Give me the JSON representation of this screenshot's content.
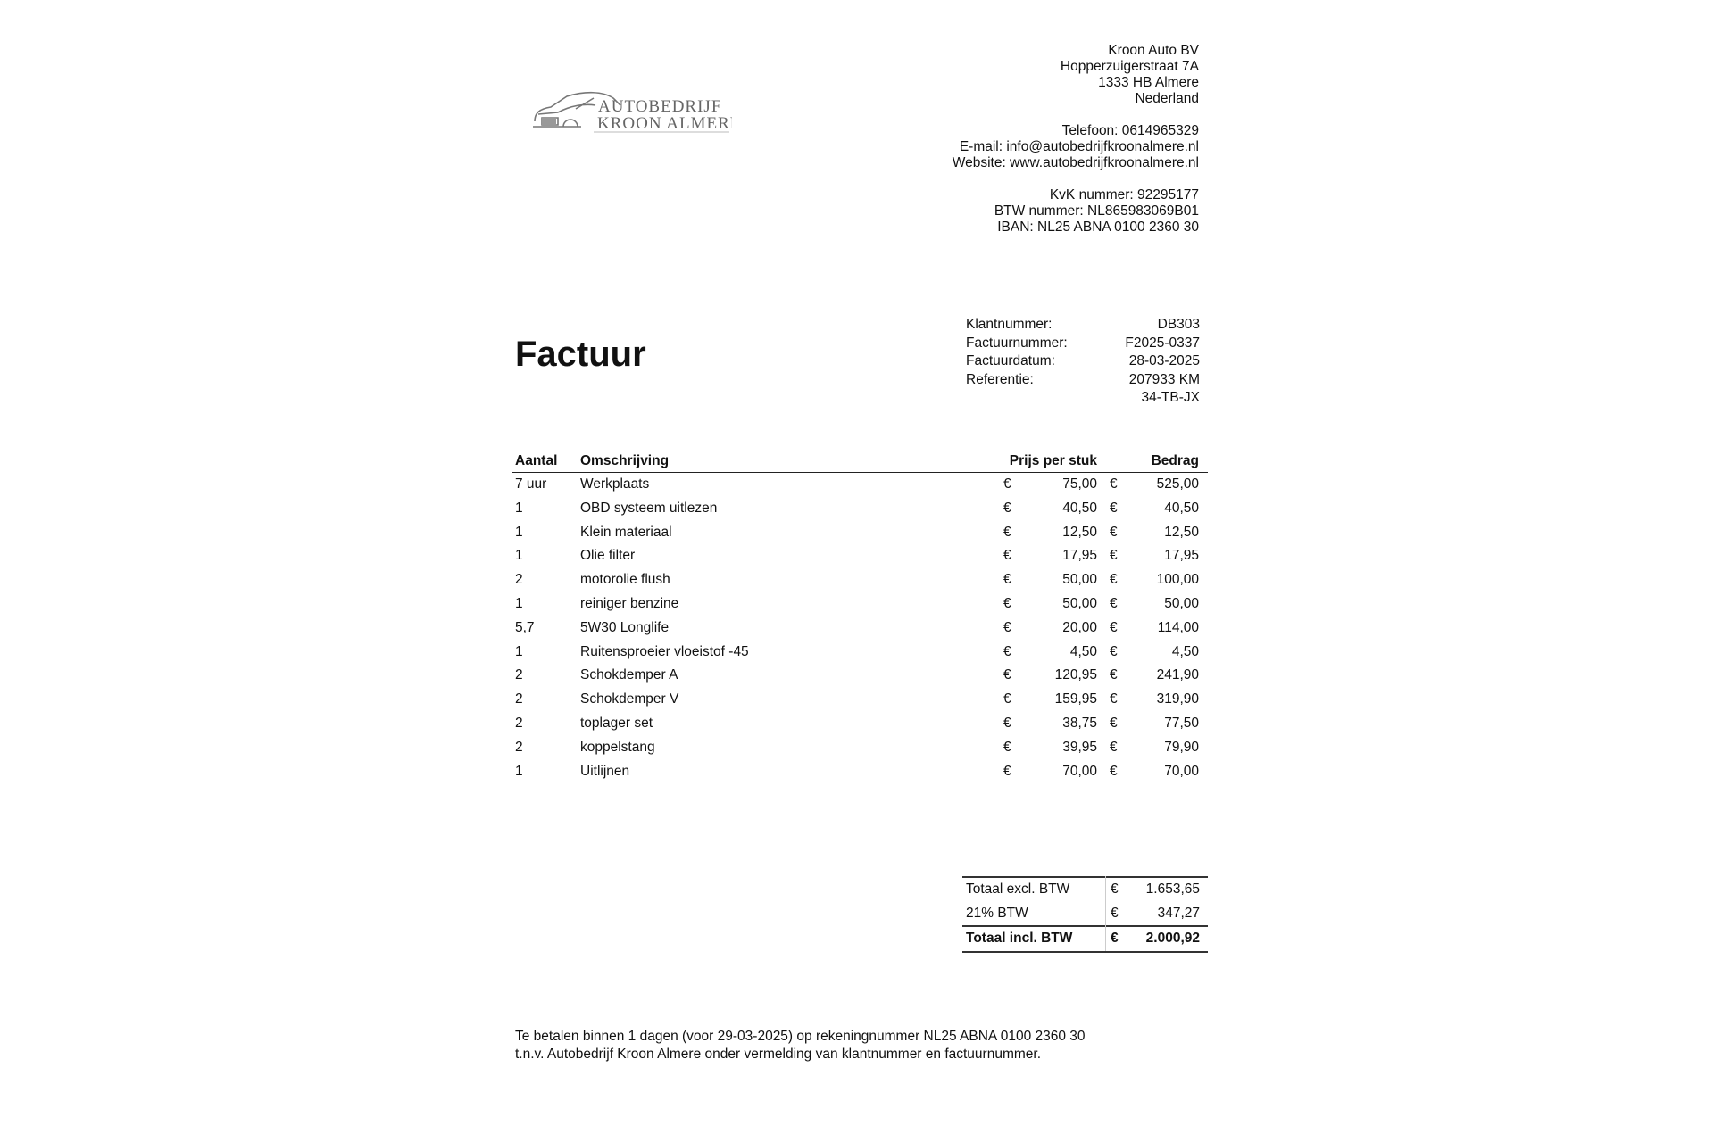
{
  "logo": {
    "line1": "AUTOBEDRIJF",
    "line2": "KROON ALMERE"
  },
  "company": {
    "lines": [
      "Kroon Auto BV",
      "Hopperzuigerstraat 7A",
      "1333 HB Almere",
      "Nederland",
      "",
      "Telefoon: 0614965329",
      "E-mail: info@autobedrijfkroonalmere.nl",
      "Website: www.autobedrijfkroonalmere.nl",
      "",
      "KvK nummer: 92295177",
      "BTW nummer: NL865983069B01",
      "IBAN: NL25 ABNA 0100 2360 30"
    ]
  },
  "title": "Factuur",
  "meta": [
    {
      "label": "Klantnummer:",
      "value": "DB303"
    },
    {
      "label": "Factuurnummer:",
      "value": "F2025-0337"
    },
    {
      "label": "Factuurdatum:",
      "value": "28-03-2025"
    },
    {
      "label": "Referentie:",
      "value": "207933 KM"
    },
    {
      "label": "",
      "value": "34-TB-JX"
    }
  ],
  "table": {
    "headers": {
      "qty": "Aantal",
      "desc": "Omschrijving",
      "price": "Prijs per stuk",
      "amount": "Bedrag"
    },
    "currency": "€",
    "rows": [
      {
        "qty": "7 uur",
        "desc": "Werkplaats",
        "price": "75,00",
        "amount": "525,00"
      },
      {
        "qty": "1",
        "desc": "OBD systeem uitlezen",
        "price": "40,50",
        "amount": "40,50"
      },
      {
        "qty": "1",
        "desc": "Klein materiaal",
        "price": "12,50",
        "amount": "12,50"
      },
      {
        "qty": "1",
        "desc": "Olie filter",
        "price": "17,95",
        "amount": "17,95"
      },
      {
        "qty": "2",
        "desc": "motorolie flush",
        "price": "50,00",
        "amount": "100,00"
      },
      {
        "qty": "1",
        "desc": "reiniger benzine",
        "price": "50,00",
        "amount": "50,00"
      },
      {
        "qty": "5,7",
        "desc": "5W30 Longlife",
        "price": "20,00",
        "amount": "114,00"
      },
      {
        "qty": "1",
        "desc": "Ruitensproeier vloeistof -45",
        "price": "4,50",
        "amount": "4,50"
      },
      {
        "qty": "2",
        "desc": "Schokdemper A",
        "price": "120,95",
        "amount": "241,90"
      },
      {
        "qty": "2",
        "desc": "Schokdemper V",
        "price": "159,95",
        "amount": "319,90"
      },
      {
        "qty": "2",
        "desc": "toplager set",
        "price": "38,75",
        "amount": "77,50"
      },
      {
        "qty": "2",
        "desc": "koppelstang",
        "price": "39,95",
        "amount": "79,90"
      },
      {
        "qty": "1",
        "desc": "Uitlijnen",
        "price": "70,00",
        "amount": "70,00"
      }
    ]
  },
  "totals": [
    {
      "label": "Totaal excl. BTW",
      "currency": "€",
      "value": "1.653,65"
    },
    {
      "label": "21% BTW",
      "currency": "€",
      "value": "347,27"
    },
    {
      "label": "Totaal incl. BTW",
      "currency": "€",
      "value": "2.000,92"
    }
  ],
  "footer": {
    "line1": "Te betalen binnen 1 dagen (voor 29-03-2025) op rekeningnummer NL25 ABNA 0100 2360 30",
    "line2": "t.n.v. Autobedrijf Kroon Almere onder vermelding van klantnummer en factuurnummer."
  }
}
